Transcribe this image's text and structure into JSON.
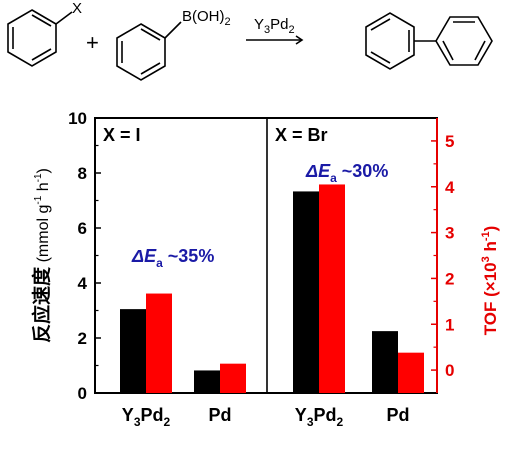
{
  "reaction": {
    "substituent": "X",
    "plus": "+",
    "boronic_group": "B(OH)",
    "boronic_sub": "2",
    "catalyst_base": "Y",
    "catalyst_sub1": "3",
    "catalyst_mid": "Pd",
    "catalyst_sub2": "2"
  },
  "chart_data": {
    "type": "bar",
    "panels": [
      {
        "label": "X = I",
        "annotation": {
          "delta": "ΔE",
          "sub": "a",
          "text": " ~35%"
        },
        "categories": [
          {
            "base": "Y",
            "sub1": "3",
            "mid": "Pd",
            "sub2": "2"
          },
          {
            "base": "Pd",
            "sub1": "",
            "mid": "",
            "sub2": ""
          }
        ],
        "series": [
          {
            "axis": "left",
            "color": "#000000",
            "values": [
              3.05,
              0.82
            ]
          },
          {
            "axis": "right",
            "color": "#ff0000",
            "values": [
              1.67,
              0.14
            ]
          }
        ]
      },
      {
        "label": "X = Br",
        "annotation": {
          "delta": "ΔE",
          "sub": "a",
          "text": " ~30%"
        },
        "categories": [
          {
            "base": "Y",
            "sub1": "3",
            "mid": "Pd",
            "sub2": "2"
          },
          {
            "base": "Pd",
            "sub1": "",
            "mid": "",
            "sub2": ""
          }
        ],
        "series": [
          {
            "axis": "left",
            "color": "#000000",
            "values": [
              7.33,
              2.25
            ]
          },
          {
            "axis": "right",
            "color": "#ff0000",
            "values": [
              4.05,
              0.38
            ]
          }
        ]
      }
    ],
    "y_left": {
      "label_cjk": "反应速度",
      "label_rest": " (mmol g",
      "label_sup1": "-1",
      "label_mid": " h",
      "label_sup2": "-1",
      "label_end": ")",
      "ylim": [
        0,
        10
      ],
      "ticks": [
        "0",
        "2",
        "4",
        "6",
        "8",
        "10"
      ],
      "color": "#000000"
    },
    "y_right": {
      "label_pre": "TOF (×10",
      "label_sup1": "3",
      "label_mid": " h",
      "label_sup2": "-1",
      "label_end": ")",
      "ylim": [
        -0.5,
        5.5
      ],
      "ticks": [
        "0",
        "1",
        "2",
        "3",
        "4",
        "5"
      ],
      "color": "#e60000"
    },
    "annotation_color": "#1a1aa6"
  }
}
